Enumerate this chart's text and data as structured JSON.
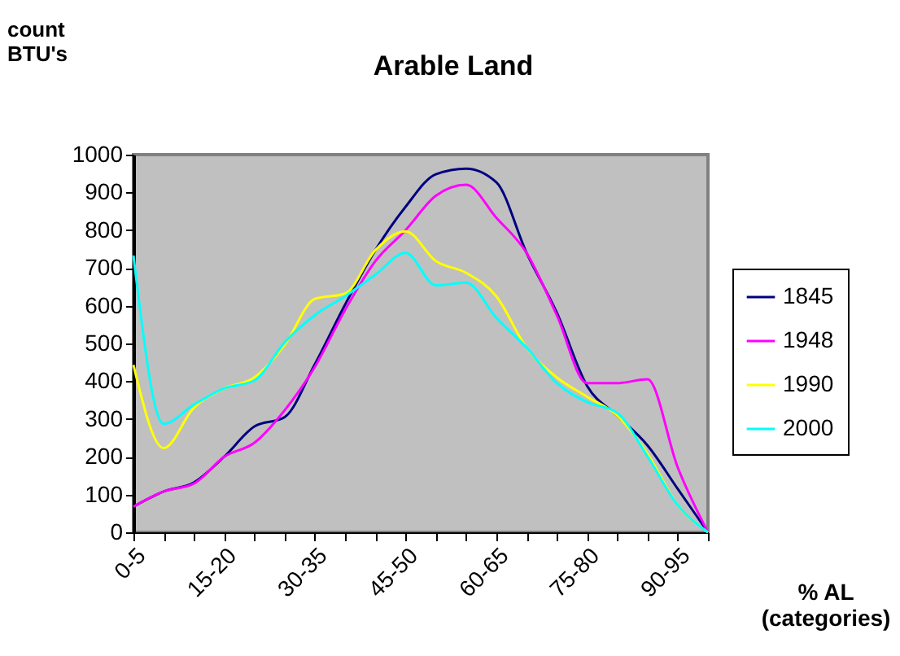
{
  "chart_data": {
    "type": "line",
    "title": "Arable Land",
    "ylabel": "count\nBTU's",
    "xlabel": "% AL\n(categories)",
    "categories": [
      "0-5",
      null,
      null,
      "15-20",
      null,
      null,
      "30-35",
      null,
      null,
      "45-50",
      null,
      null,
      "60-65",
      null,
      null,
      "75-80",
      null,
      null,
      "90-95",
      null
    ],
    "series": [
      {
        "name": "1845",
        "color": "#000080",
        "values": [
          68,
          108,
          132,
          200,
          280,
          305,
          445,
          603,
          747,
          862,
          948,
          963,
          927,
          740,
          582,
          388,
          309,
          230,
          115,
          0
        ]
      },
      {
        "name": "1948",
        "color": "#ff00ff",
        "values": [
          68,
          108,
          129,
          200,
          237,
          323,
          438,
          589,
          718,
          800,
          891,
          920,
          833,
          740,
          575,
          395,
          395,
          405,
          172,
          0
        ]
      },
      {
        "name": "1990",
        "color": "#ffff00",
        "values": [
          443,
          223,
          330,
          381,
          410,
          496,
          618,
          632,
          747,
          797,
          718,
          687,
          625,
          489,
          410,
          359,
          309,
          208,
          72,
          0
        ]
      },
      {
        "name": "2000",
        "color": "#00ffff",
        "values": [
          733,
          287,
          338,
          381,
          402,
          503,
          575,
          625,
          682,
          740,
          654,
          661,
          568,
          489,
          395,
          345,
          316,
          201,
          72,
          0
        ]
      }
    ],
    "ylim": [
      0,
      1000
    ],
    "yticks": [
      0,
      100,
      200,
      300,
      400,
      500,
      600,
      700,
      800,
      900,
      {
        "value": 1000,
        "label": "1000"
      }
    ],
    "grid": false,
    "legend": "right",
    "marker": "none",
    "line_style": "solid"
  }
}
